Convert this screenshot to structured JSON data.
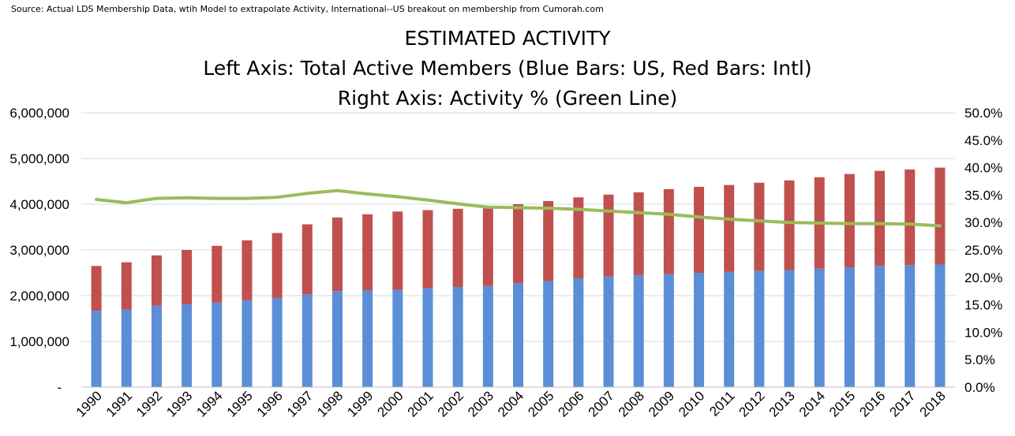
{
  "source": "Source: Actual LDS Membership Data, wtih Model to extrapolate Activity, International--US breakout on membership from Cumorah.com",
  "title_lines": [
    "ESTIMATED ACTIVITY",
    "Left Axis: Total Active Members (Blue Bars: US, Red Bars: Intl)",
    "Right Axis: Activity % (Green Line)"
  ],
  "colors": {
    "us": "#5b8ed6",
    "intl": "#c0504d",
    "line": "#9bbb59",
    "grid": "#d9d9d9"
  },
  "chart_data": {
    "type": "bar",
    "stacked": true,
    "title": "ESTIMATED ACTIVITY",
    "categories": [
      "1990",
      "1991",
      "1992",
      "1993",
      "1994",
      "1995",
      "1996",
      "1997",
      "1998",
      "1999",
      "2000",
      "2001",
      "2002",
      "2003",
      "2004",
      "2005",
      "2006",
      "2007",
      "2008",
      "2009",
      "2010",
      "2011",
      "2012",
      "2013",
      "2014",
      "2015",
      "2016",
      "2017",
      "2018"
    ],
    "series": [
      {
        "values": [
          1670000,
          1700000,
          1780000,
          1810000,
          1850000,
          1900000,
          1950000,
          2030000,
          2100000,
          2120000,
          2130000,
          2160000,
          2190000,
          2210000,
          2270000,
          2320000,
          2380000,
          2420000,
          2450000,
          2470000,
          2500000,
          2520000,
          2540000,
          2560000,
          2590000,
          2620000,
          2650000,
          2670000,
          2680000
        ]
      },
      {
        "values": [
          980000,
          1030000,
          1100000,
          1190000,
          1240000,
          1310000,
          1420000,
          1530000,
          1610000,
          1660000,
          1710000,
          1710000,
          1710000,
          1700000,
          1730000,
          1750000,
          1770000,
          1790000,
          1810000,
          1860000,
          1880000,
          1900000,
          1930000,
          1960000,
          2000000,
          2040000,
          2080000,
          2090000,
          2120000
        ]
      }
    ],
    "line": {
      "axis": "right",
      "values": [
        34.2,
        33.6,
        34.4,
        34.5,
        34.4,
        34.4,
        34.6,
        35.3,
        35.8,
        35.2,
        34.7,
        34.1,
        33.4,
        32.8,
        32.7,
        32.6,
        32.4,
        32.1,
        31.8,
        31.5,
        31.0,
        30.6,
        30.3,
        30.0,
        29.9,
        29.8,
        29.8,
        29.7,
        29.4
      ]
    },
    "y_left": {
      "min": 0,
      "max": 6000000,
      "ticks": [
        "-",
        "1,000,000",
        "2,000,000",
        "3,000,000",
        "4,000,000",
        "5,000,000",
        "6,000,000"
      ]
    },
    "y_right": {
      "min": 0,
      "max": 50,
      "ticks": [
        "0.0%",
        "5.0%",
        "10.0%",
        "15.0%",
        "20.0%",
        "25.0%",
        "30.0%",
        "35.0%",
        "40.0%",
        "45.0%",
        "50.0%"
      ]
    },
    "grid": true,
    "legend": "none"
  }
}
